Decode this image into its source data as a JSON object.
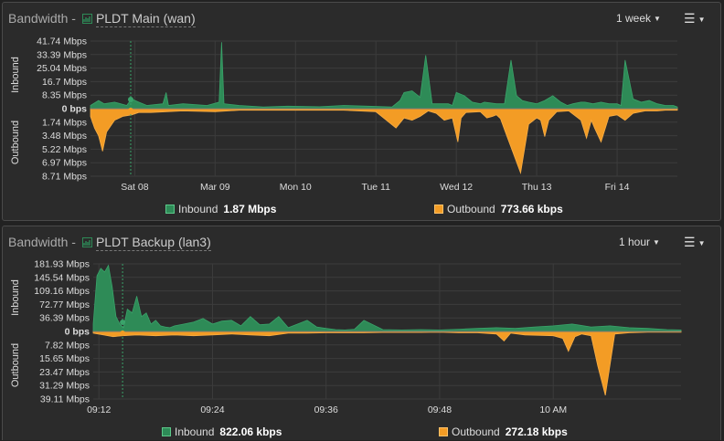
{
  "colors": {
    "inbound": "#2e8b57",
    "outbound": "#f39c25",
    "grid": "#3c3c3c",
    "background": "#2b2b2b"
  },
  "panels": [
    {
      "title": "Bandwidth -",
      "interface_label": "PLDT Main (wan)",
      "range": "1 week",
      "menu_icon": "hamburger-menu-icon",
      "side_labels": {
        "inbound": "Inbound",
        "outbound": "Outbound"
      },
      "legend": {
        "inbound_label": "Inbound",
        "inbound_value": "1.87 Mbps",
        "outbound_label": "Outbound",
        "outbound_value": "773.66 kbps"
      }
    },
    {
      "title": "Bandwidth -",
      "interface_label": "PLDT Backup (lan3)",
      "range": "1 hour",
      "menu_icon": "hamburger-menu-icon",
      "side_labels": {
        "inbound": "Inbound",
        "outbound": "Outbound"
      },
      "legend": {
        "inbound_label": "Inbound",
        "inbound_value": "822.06 kbps",
        "outbound_label": "Outbound",
        "outbound_value": "272.18 kbps"
      }
    }
  ],
  "chart_data": [
    {
      "type": "area",
      "inbound_ticks": [
        "41.74 Mbps",
        "33.39 Mbps",
        "25.04 Mbps",
        "16.7 Mbps",
        "8.35 Mbps"
      ],
      "zero_tick": "0 bps",
      "outbound_ticks": [
        "1.74 Mbps",
        "3.48 Mbps",
        "5.22 Mbps",
        "6.97 Mbps",
        "8.71 Mbps"
      ],
      "inbound_max": 41.74,
      "outbound_max": 8.71,
      "x_ticks": [
        "Sat 08",
        "Mar 09",
        "Mon 10",
        "Tue 11",
        "Wed 12",
        "Thu 13",
        "Fri 14"
      ],
      "x_range_days": [
        7.45,
        14.75
      ],
      "cursor_day": 7.95,
      "series": [
        {
          "name": "Inbound",
          "x": [
            7.45,
            7.55,
            7.62,
            7.75,
            7.9,
            7.96,
            8.05,
            8.15,
            8.35,
            8.39,
            8.42,
            8.6,
            8.9,
            9.05,
            9.08,
            9.11,
            9.3,
            9.6,
            9.9,
            10.3,
            10.6,
            10.9,
            11.2,
            11.3,
            11.35,
            11.45,
            11.55,
            11.62,
            11.7,
            11.9,
            11.95,
            12.0,
            12.1,
            12.2,
            12.3,
            12.35,
            12.5,
            12.6,
            12.68,
            12.75,
            12.82,
            12.9,
            13.0,
            13.1,
            13.2,
            13.3,
            13.38,
            13.45,
            13.55,
            13.6,
            13.7,
            13.8,
            13.9,
            14.0,
            14.05,
            14.1,
            14.2,
            14.3,
            14.4,
            14.5,
            14.6,
            14.7,
            14.75
          ],
          "values": [
            2,
            5,
            3,
            4,
            2,
            6,
            4,
            2,
            3,
            10,
            2,
            3,
            2,
            4,
            41,
            3,
            2,
            1,
            1.5,
            1.2,
            2,
            1.5,
            1,
            5,
            10,
            11,
            7,
            33,
            3,
            3,
            2,
            10,
            8,
            4,
            3,
            4,
            3,
            3,
            30,
            8,
            5,
            4,
            3,
            5,
            8,
            4,
            2,
            3,
            4,
            4,
            3,
            4,
            3,
            3,
            2,
            30,
            6,
            4,
            5,
            3,
            2,
            2,
            1
          ]
        },
        {
          "name": "Outbound",
          "x": [
            7.45,
            7.5,
            7.55,
            7.6,
            7.65,
            7.75,
            7.85,
            7.96,
            8.05,
            8.2,
            8.6,
            9.0,
            9.3,
            9.6,
            10.0,
            10.6,
            11.0,
            11.25,
            11.35,
            11.45,
            11.55,
            11.65,
            11.75,
            11.85,
            11.95,
            12.02,
            12.06,
            12.12,
            12.3,
            12.38,
            12.45,
            12.5,
            12.55,
            12.62,
            12.7,
            12.8,
            12.9,
            13.0,
            13.05,
            13.1,
            13.15,
            13.25,
            13.4,
            13.55,
            13.62,
            13.68,
            13.72,
            13.8,
            13.9,
            14.0,
            14.1,
            14.2,
            14.35,
            14.5,
            14.6,
            14.75
          ],
          "values": [
            1,
            2.5,
            3.5,
            5.5,
            3,
            1.5,
            1,
            0.8,
            0.5,
            0.5,
            0.3,
            0.4,
            0.2,
            0.2,
            0.2,
            0.2,
            0.4,
            2.5,
            1.2,
            1.5,
            1.0,
            0.3,
            0.6,
            1.5,
            1.2,
            4.3,
            1.2,
            0.5,
            0.4,
            1.2,
            1.0,
            0.8,
            1.3,
            3.3,
            5.5,
            8.3,
            2.0,
            1.2,
            1.5,
            3.6,
            1.5,
            0.4,
            0.3,
            1.5,
            3.8,
            1.5,
            2.5,
            4.3,
            1.0,
            0.8,
            1.5,
            0.6,
            0.3,
            0.3,
            0.2,
            0.2
          ]
        }
      ]
    },
    {
      "type": "area",
      "inbound_ticks": [
        "181.93 Mbps",
        "145.54 Mbps",
        "109.16 Mbps",
        "72.77 Mbps",
        "36.39 Mbps"
      ],
      "zero_tick": "0 bps",
      "outbound_ticks": [
        "7.82 Mbps",
        "15.65 Mbps",
        "23.47 Mbps",
        "31.29 Mbps",
        "39.11 Mbps"
      ],
      "inbound_max": 181.93,
      "outbound_max": 39.11,
      "x_ticks": [
        "09:12",
        "09:24",
        "09:36",
        "09:48",
        "10 AM"
      ],
      "x_range_minutes": [
        551.4,
        613.5
      ],
      "cursor_minute": 554.5,
      "series": [
        {
          "name": "Inbound",
          "x": [
            551.4,
            551.8,
            552.2,
            552.6,
            553.0,
            553.4,
            553.8,
            554.2,
            554.6,
            555.0,
            555.5,
            556.0,
            556.5,
            557.0,
            557.5,
            558.0,
            558.5,
            559.0,
            559.5,
            560.0,
            561.0,
            562.0,
            563.0,
            564.0,
            565.0,
            566.0,
            567.0,
            568.0,
            569.0,
            570.0,
            571.0,
            572.0,
            573.0,
            574.0,
            575.0,
            576.0,
            577.0,
            578.0,
            579.0,
            580.0,
            582.0,
            584.0,
            586.0,
            588.0,
            590.0,
            592.0,
            594.0,
            596.0,
            598.0,
            600.0,
            602.0,
            604.0,
            606.0,
            608.0,
            610.0,
            612.0,
            613.5
          ],
          "values": [
            20,
            150,
            170,
            160,
            178,
            120,
            40,
            20,
            10,
            60,
            50,
            95,
            40,
            50,
            20,
            30,
            15,
            12,
            10,
            15,
            20,
            25,
            35,
            20,
            28,
            30,
            15,
            40,
            18,
            20,
            40,
            10,
            20,
            30,
            12,
            8,
            5,
            4,
            6,
            30,
            5,
            4,
            5,
            4,
            6,
            8,
            10,
            8,
            12,
            15,
            20,
            12,
            15,
            10,
            8,
            5,
            4
          ]
        },
        {
          "name": "Outbound",
          "x": [
            551.4,
            552.5,
            553.5,
            554.5,
            556.0,
            558.0,
            560.0,
            562.0,
            564.0,
            566.0,
            568.0,
            570.0,
            572.0,
            574.0,
            576.0,
            578.0,
            580.0,
            582.0,
            584.0,
            586.0,
            588.0,
            590.0,
            592.0,
            594.0,
            594.8,
            595.5,
            597.0,
            600.0,
            601.0,
            601.6,
            602.3,
            603.0,
            604.0,
            604.7,
            605.5,
            606.5,
            608.0,
            610.0,
            613.5
          ],
          "values": [
            1,
            2,
            3,
            2.5,
            2,
            2.5,
            2,
            2.5,
            2,
            1.5,
            2,
            2.5,
            1,
            1,
            0.8,
            0.8,
            0.8,
            0.6,
            0.6,
            0.6,
            0.5,
            0.8,
            0.8,
            1.5,
            5.5,
            1.0,
            2.0,
            2.5,
            4.0,
            11.5,
            3.0,
            1.5,
            2.5,
            20.0,
            37.0,
            1.5,
            0.8,
            0.5,
            0.4
          ]
        }
      ]
    }
  ]
}
